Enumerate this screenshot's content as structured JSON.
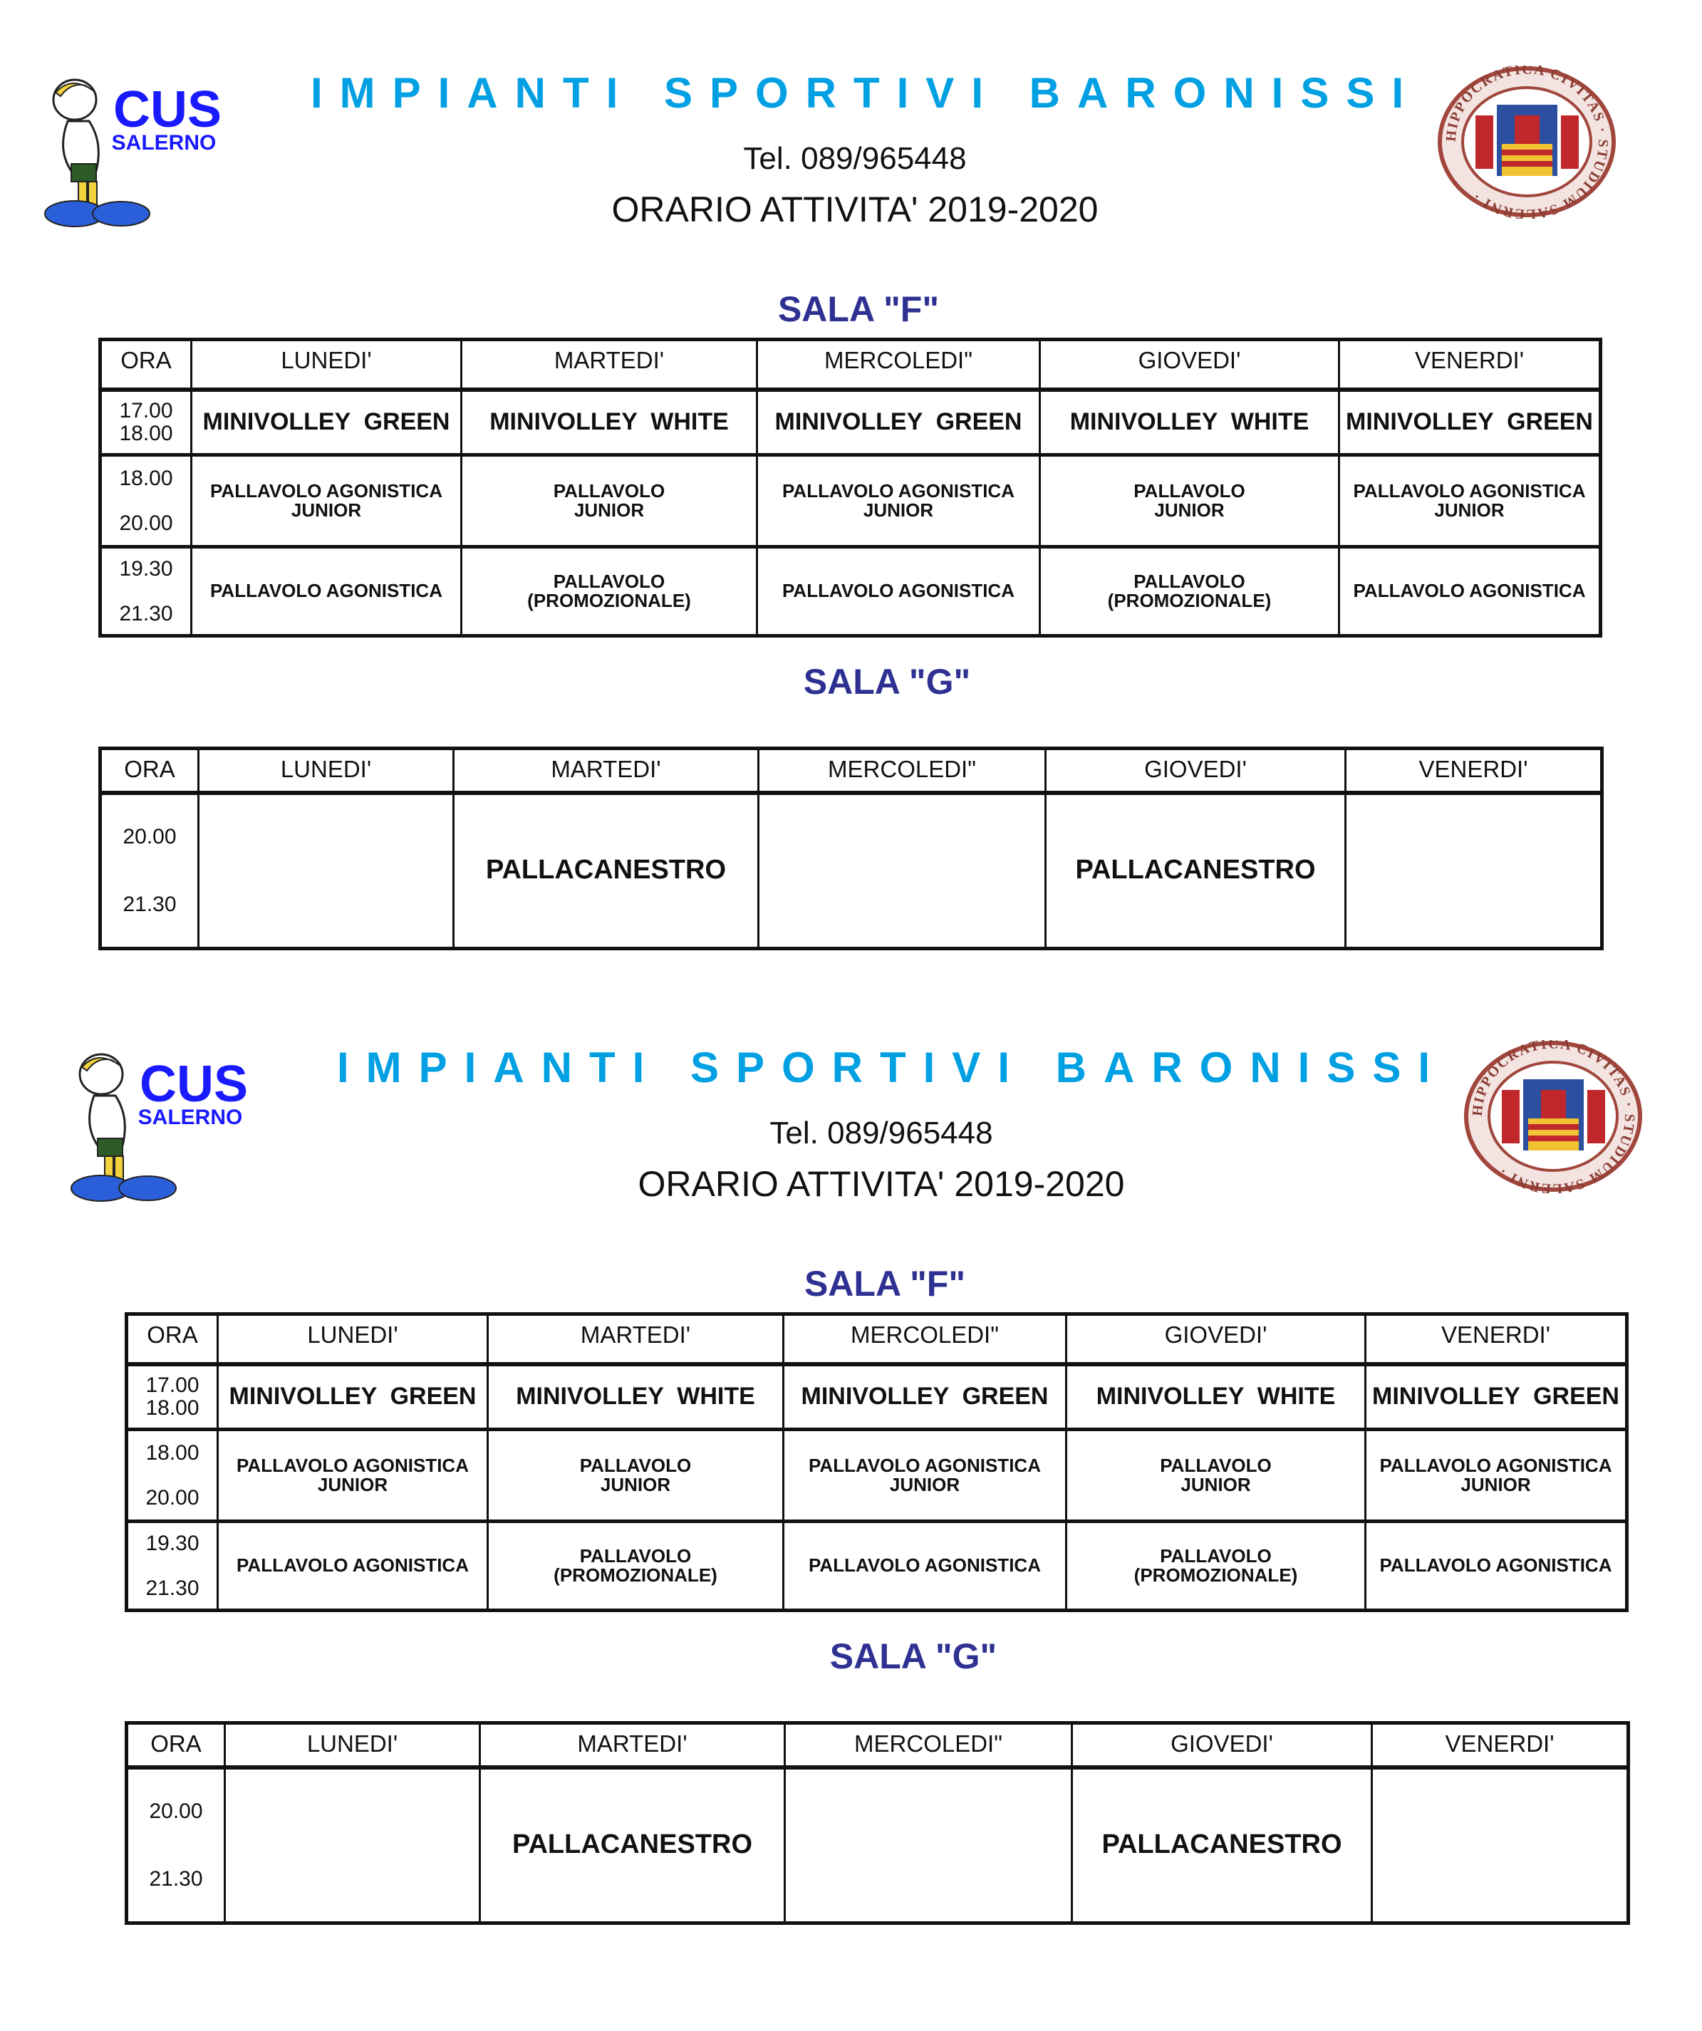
{
  "colors": {
    "title": "#00a0e3",
    "room_title": "#2e3192",
    "text": "#111111"
  },
  "pages": [
    {
      "logos": {
        "left": "CUS SALERNO",
        "right": "HIPPOCRATICA CIVITAS STUDIUM SALERNI"
      },
      "header": {
        "title": "IMPIANTI SPORTIVI BARONISSI",
        "tel": "Tel.  089/965448",
        "schedule_title": "ORARIO ATTIVITA' 2019-2020"
      },
      "rooms": [
        {
          "name": "SALA \"F\"",
          "columns": [
            "ORA",
            "LUNEDI'",
            "MARTEDI'",
            "MERCOLEDI\"",
            "GIOVEDI'",
            "VENERDI'"
          ],
          "rows": [
            {
              "time": "17.00\n18.00",
              "cells": [
                "MINIVOLLEY  GREEN",
                "MINIVOLLEY  WHITE",
                "MINIVOLLEY  GREEN",
                "MINIVOLLEY  WHITE",
                "MINIVOLLEY  GREEN"
              ]
            },
            {
              "time": "18.00\n\n20.00",
              "cells": [
                "PALLAVOLO AGONISTICA\nJUNIOR",
                "PALLAVOLO\nJUNIOR",
                "PALLAVOLO AGONISTICA\nJUNIOR",
                "PALLAVOLO\nJUNIOR",
                "PALLAVOLO AGONISTICA\nJUNIOR"
              ]
            },
            {
              "time": "19.30\n\n21.30",
              "cells": [
                "PALLAVOLO AGONISTICA",
                "PALLAVOLO\n(PROMOZIONALE)",
                "PALLAVOLO AGONISTICA",
                "PALLAVOLO\n(PROMOZIONALE)",
                "PALLAVOLO AGONISTICA"
              ]
            }
          ]
        },
        {
          "name": "SALA \"G\"",
          "columns": [
            "ORA",
            "LUNEDI'",
            "MARTEDI'",
            "MERCOLEDI\"",
            "GIOVEDI'",
            "VENERDI'"
          ],
          "rows": [
            {
              "time": "20.00\n\n\n21.30",
              "cells": [
                "",
                "PALLACANESTRO",
                "",
                "PALLACANESTRO",
                ""
              ]
            }
          ]
        }
      ]
    },
    {
      "logos": {
        "left": "CUS SALERNO",
        "right": "HIPPOCRATICA CIVITAS STUDIUM SALERNI"
      },
      "header": {
        "title": "IMPIANTI SPORTIVI BARONISSI",
        "tel": "Tel.  089/965448",
        "schedule_title": "ORARIO ATTIVITA' 2019-2020"
      },
      "rooms": [
        {
          "name": "SALA \"F\"",
          "columns": [
            "ORA",
            "LUNEDI'",
            "MARTEDI'",
            "MERCOLEDI\"",
            "GIOVEDI'",
            "VENERDI'"
          ],
          "rows": [
            {
              "time": "17.00\n18.00",
              "cells": [
                "MINIVOLLEY  GREEN",
                "MINIVOLLEY  WHITE",
                "MINIVOLLEY  GREEN",
                "MINIVOLLEY  WHITE",
                "MINIVOLLEY  GREEN"
              ]
            },
            {
              "time": "18.00\n\n20.00",
              "cells": [
                "PALLAVOLO AGONISTICA\nJUNIOR",
                "PALLAVOLO\nJUNIOR",
                "PALLAVOLO AGONISTICA\nJUNIOR",
                "PALLAVOLO\nJUNIOR",
                "PALLAVOLO AGONISTICA\nJUNIOR"
              ]
            },
            {
              "time": "19.30\n\n21.30",
              "cells": [
                "PALLAVOLO AGONISTICA",
                "PALLAVOLO\n(PROMOZIONALE)",
                "PALLAVOLO AGONISTICA",
                "PALLAVOLO\n(PROMOZIONALE)",
                "PALLAVOLO AGONISTICA"
              ]
            }
          ]
        },
        {
          "name": "SALA \"G\"",
          "columns": [
            "ORA",
            "LUNEDI'",
            "MARTEDI'",
            "MERCOLEDI\"",
            "GIOVEDI'",
            "VENERDI'"
          ],
          "rows": [
            {
              "time": "20.00\n\n\n21.30",
              "cells": [
                "",
                "PALLACANESTRO",
                "",
                "PALLACANESTRO",
                ""
              ]
            }
          ]
        }
      ]
    }
  ]
}
